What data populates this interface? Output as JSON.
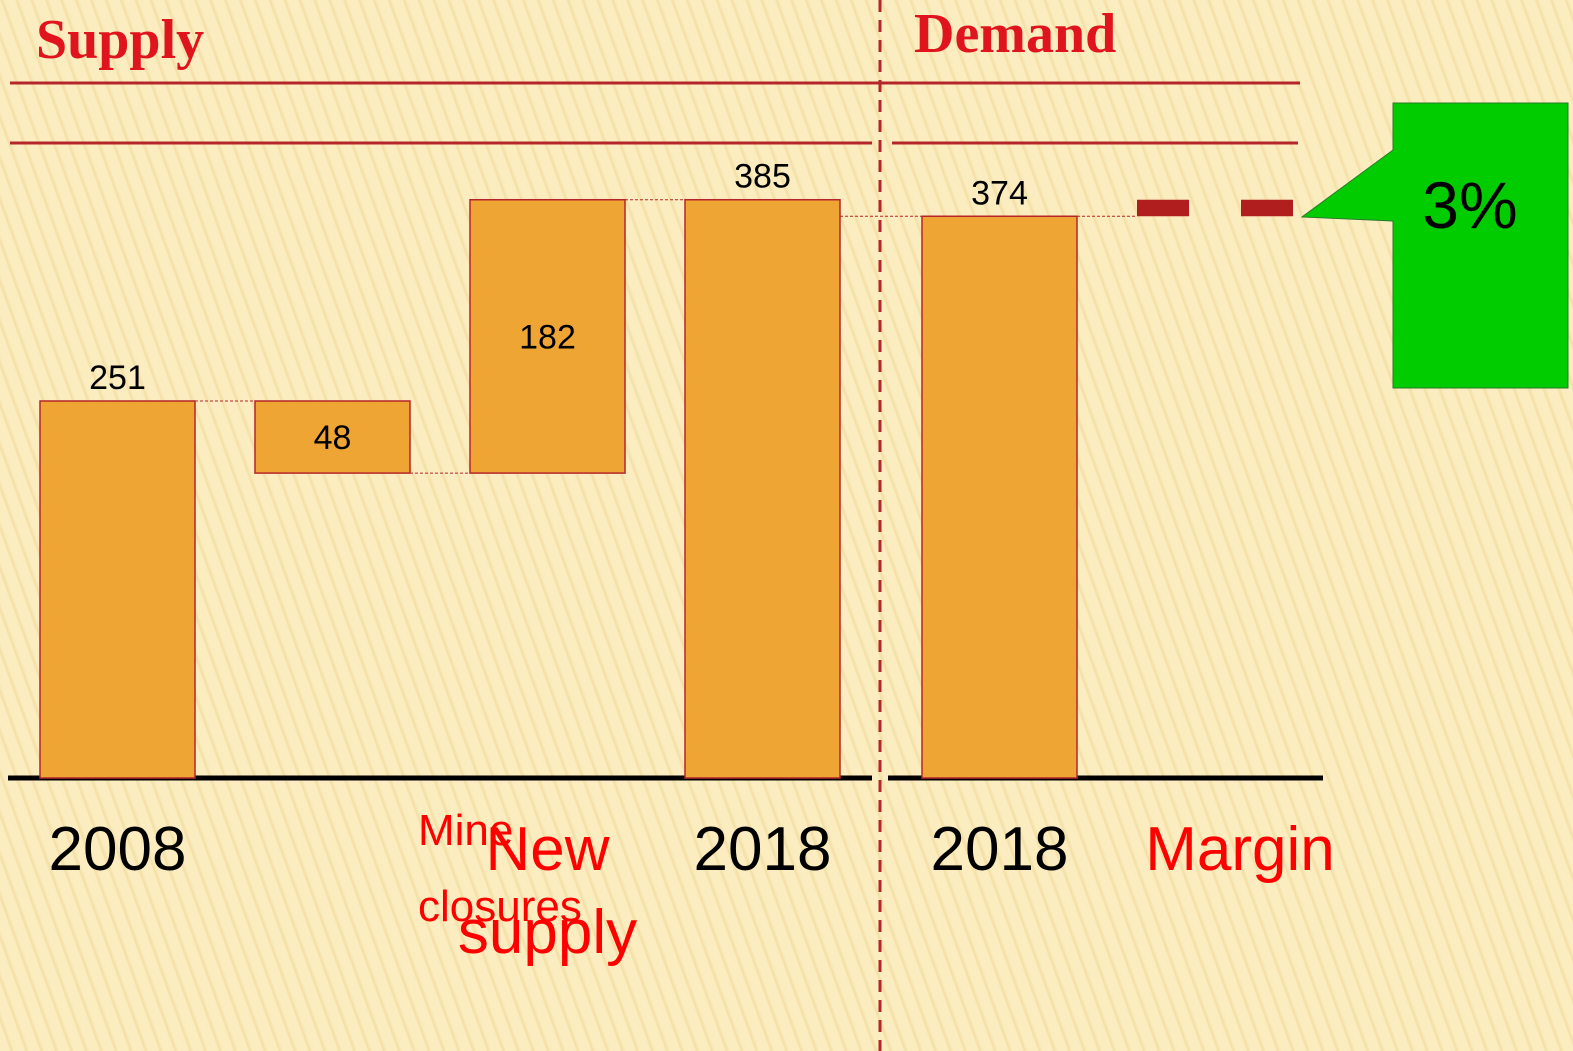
{
  "chart_data": {
    "type": "waterfall",
    "sections": [
      "Supply",
      "Demand"
    ],
    "categories": [
      "2008",
      "Mine closures",
      "New supply",
      "2018",
      "2018"
    ],
    "kinds": [
      "total",
      "decrease",
      "increase",
      "total",
      "total"
    ],
    "values": [
      251,
      48,
      182,
      385,
      374
    ],
    "color": "#eea534",
    "margin": {
      "label": "Margin",
      "value": 3,
      "value_label": "3%",
      "color": "#b01e1e",
      "callout_color": "#00cc00"
    }
  }
}
